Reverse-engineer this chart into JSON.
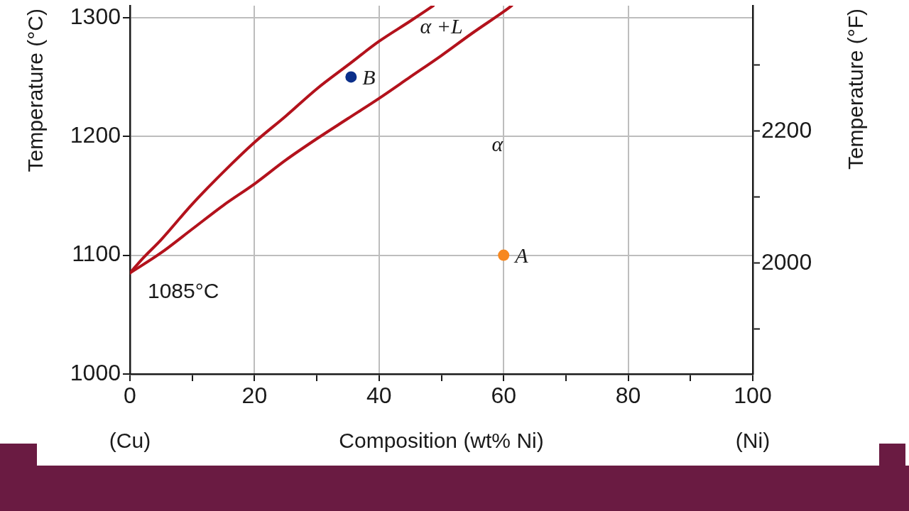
{
  "chart_data": {
    "type": "line",
    "xlabel": "Composition (wt% Ni)",
    "ylabel": "Temperature (°C)",
    "y2label": "Temperature (°F)",
    "xlim": [
      0,
      100
    ],
    "xticks": [
      0,
      {
        "value": 10,
        "label": null
      },
      20,
      {
        "value": 30,
        "label": null
      },
      40,
      {
        "value": 50,
        "label": null
      },
      60,
      {
        "value": 70,
        "label": null
      },
      80,
      {
        "value": 90,
        "label": null
      },
      100
    ],
    "ylim": [
      1000,
      1310
    ],
    "yticks": [
      1000,
      1100,
      1200,
      1300
    ],
    "y2lim": [
      1832,
      2390
    ],
    "y2ticks": [
      {
        "value": 1900,
        "label": null
      },
      2000,
      {
        "value": 2100,
        "label": null
      },
      2200,
      {
        "value": 2300,
        "label": null
      }
    ],
    "grid": true,
    "series": [
      {
        "color": "#b3121c",
        "x": [
          0,
          2,
          5,
          10,
          15,
          20,
          25,
          30,
          35,
          40,
          45,
          48.7
        ],
        "values": [
          1085,
          1097,
          1113,
          1143,
          1170,
          1195,
          1217,
          1240,
          1260,
          1280,
          1297,
          1310
        ]
      },
      {
        "color": "#b3121c",
        "x": [
          0,
          5,
          10,
          15,
          20,
          25,
          30,
          35,
          40,
          45,
          50,
          55,
          60,
          61.3
        ],
        "values": [
          1085,
          1102,
          1122,
          1142,
          1160,
          1180,
          1198,
          1215,
          1232,
          1250,
          1268,
          1287,
          1305,
          1310
        ]
      },
      {
        "type": "scatter",
        "name": "A",
        "color": "#f7881f",
        "marker": "circle",
        "x": [
          60
        ],
        "values": [
          1100
        ]
      },
      {
        "type": "scatter",
        "name": "B",
        "color": "#0b2f8a",
        "marker": "circle",
        "x": [
          35.5
        ],
        "values": [
          1250
        ]
      }
    ],
    "annotations": [
      "α +L",
      "α",
      {
        "text": "1085°C",
        "x": 0,
        "y": 1085
      },
      "(Cu)",
      "(Ni)"
    ]
  }
}
